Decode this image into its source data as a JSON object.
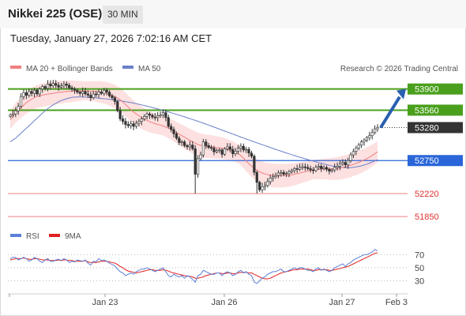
{
  "header": {
    "title": "Nikkei 225 (OSE)",
    "timeframe": "30 MIN",
    "timestamp": "Tuesday, January 27, 2026 7:02:16 AM CET"
  },
  "legend": {
    "bollinger": "MA 20 + Bollinger Bands",
    "ma50": "MA 50",
    "copyright": "Research © 2026 Trading Central",
    "rsi": "RSI",
    "rsi_ma": "9MA"
  },
  "colors": {
    "candle": "#333333",
    "ma20": "#f08080",
    "bands_fill": "#fde0e0",
    "ma50": "#6a7fc8",
    "resistance": "#4aa01c",
    "pivot": "#2a66d9",
    "support": "#f08080",
    "last": "#333333",
    "arrow": "#2a5fb0",
    "rsi": "#5b7fd6",
    "rsi_ma": "#e02020"
  },
  "chart_data": [
    {
      "type": "candlestick",
      "title": "Nikkei 225 (OSE)",
      "timeframe": "30 MIN",
      "x_ticks": [
        "Jan 23",
        "Jan 26",
        "Jan 27",
        "Feb 3"
      ],
      "ylim": [
        51750,
        54010
      ],
      "price_levels": [
        {
          "value": 53900,
          "label": "53900",
          "kind": "resistance"
        },
        {
          "value": 53560,
          "label": "53560",
          "kind": "resistance"
        },
        {
          "value": 53280,
          "label": "53280",
          "kind": "last"
        },
        {
          "value": 52750,
          "label": "52750",
          "kind": "pivot"
        },
        {
          "value": 52220,
          "label": "52220",
          "kind": "support"
        },
        {
          "value": 51850,
          "label": "51850",
          "kind": "support"
        }
      ],
      "close": [
        53480,
        53500,
        53550,
        53620,
        53780,
        53840,
        53800,
        53860,
        53830,
        53880,
        53820,
        53900,
        53940,
        53910,
        53980,
        53950,
        53990,
        53960,
        53930,
        53950,
        53980,
        53960,
        53920,
        53900,
        53880,
        53850,
        53830,
        53860,
        53820,
        53800,
        53760,
        53820,
        53810,
        53850,
        53830,
        53880,
        53850,
        53790,
        53760,
        53700,
        53550,
        53420,
        53380,
        53330,
        53310,
        53340,
        53300,
        53350,
        53380,
        53420,
        53460,
        53500,
        53480,
        53450,
        53440,
        53470,
        53480,
        53520,
        53440,
        53300,
        53250,
        53180,
        53110,
        53040,
        53050,
        52990,
        52970,
        53000,
        52940,
        52530,
        52780,
        52840,
        53050,
        52990,
        52960,
        52950,
        52890,
        52910,
        52920,
        52850,
        52940,
        52970,
        52930,
        52860,
        52900,
        52950,
        52980,
        52920,
        52930,
        52870,
        52820,
        52560,
        52400,
        52280,
        52330,
        52350,
        52410,
        52470,
        52490,
        52510,
        52550,
        52560,
        52530,
        52540,
        52570,
        52590,
        52620,
        52610,
        52640,
        52650,
        52640,
        52620,
        52600,
        52590,
        52640,
        52660,
        52620,
        52640,
        52610,
        52580,
        52600,
        52640,
        52660,
        52700,
        52720,
        52680,
        52750,
        52840,
        52900,
        52950,
        53000,
        53050,
        53080,
        53120,
        53150,
        53200,
        53260,
        53280
      ],
      "ma20": [
        53400,
        53460,
        53520,
        53560,
        53600,
        53640,
        53680,
        53710,
        53740,
        53760,
        53780,
        53790,
        53800,
        53810,
        53820,
        53825,
        53830,
        53840,
        53845,
        53850,
        53855,
        53860,
        53862,
        53864,
        53866,
        53868,
        53869,
        53870,
        53870,
        53868,
        53866,
        53864,
        53860,
        53855,
        53850,
        53840,
        53830,
        53815,
        53800,
        53780,
        53755,
        53725,
        53690,
        53650,
        53610,
        53570,
        53530,
        53500,
        53470,
        53440,
        53415,
        53395,
        53375,
        53360,
        53345,
        53330,
        53320,
        53305,
        53290,
        53270,
        53250,
        53225,
        53200,
        53175,
        53150,
        53125,
        53100,
        53075,
        53050,
        53030,
        53010,
        52995,
        52985,
        52980,
        52975,
        52970,
        52965,
        52960,
        52955,
        52950,
        52940,
        52930,
        52915,
        52900,
        52880,
        52860,
        52830,
        52790,
        52740,
        52700,
        52660,
        52625,
        52595,
        52570,
        52550,
        52535,
        52525,
        52515,
        52510,
        52508,
        52505,
        52505,
        52508,
        52510,
        52515,
        52520,
        52530,
        52540,
        52550,
        52560,
        52570,
        52580,
        52590,
        52598,
        52605,
        52610,
        52612,
        52614,
        52615,
        52615,
        52616,
        52620,
        52625,
        52630,
        52640,
        52650,
        52660,
        52675,
        52690,
        52705,
        52720,
        52740,
        52760,
        52780,
        52805,
        52830,
        52860,
        52890
      ],
      "ma50": [
        53050,
        53080,
        53110,
        53150,
        53190,
        53230,
        53270,
        53310,
        53350,
        53390,
        53430,
        53470,
        53510,
        53550,
        53585,
        53615,
        53645,
        53670,
        53695,
        53715,
        53730,
        53745,
        53755,
        53765,
        53770,
        53772,
        53773,
        53772,
        53770,
        53767,
        53764,
        53760,
        53756,
        53752,
        53748,
        53744,
        53740,
        53736,
        53731,
        53725,
        53719,
        53712,
        53705,
        53697,
        53689,
        53681,
        53673,
        53664,
        53654,
        53644,
        53634,
        53624,
        53613,
        53602,
        53591,
        53580,
        53568,
        53556,
        53544,
        53532,
        53519,
        53506,
        53493,
        53480,
        53466,
        53452,
        53438,
        53424,
        53410,
        53396,
        53381,
        53366,
        53351,
        53336,
        53320,
        53304,
        53288,
        53272,
        53256,
        53240,
        53224,
        53208,
        53192,
        53176,
        53160,
        53144,
        53128,
        53112,
        53096,
        53080,
        53065,
        53050,
        53035,
        53020,
        53005,
        52990,
        52975,
        52960,
        52945,
        52930,
        52915,
        52900,
        52886,
        52872,
        52858,
        52844,
        52830,
        52817,
        52804,
        52791,
        52778,
        52766,
        52754,
        52742,
        52730,
        52718,
        52707,
        52696,
        52685,
        52674,
        52664,
        52655,
        52648,
        52642,
        52638,
        52636,
        52636,
        52638,
        52642,
        52648,
        52656,
        52666,
        52678,
        52692,
        52708,
        52725,
        52744,
        52764
      ]
    },
    {
      "type": "line",
      "title": "RSI",
      "y_ticks": [
        70,
        50,
        30
      ],
      "ylim": [
        10,
        85
      ],
      "series": [
        {
          "name": "RSI",
          "values": [
            64,
            66,
            66,
            62,
            64,
            66,
            64,
            60,
            62,
            66,
            64,
            60,
            58,
            62,
            64,
            60,
            60,
            62,
            63,
            61,
            64,
            62,
            58,
            60,
            59,
            62,
            61,
            60,
            62,
            57,
            54,
            60,
            59,
            64,
            61,
            62,
            60,
            57,
            55,
            53,
            48,
            44,
            42,
            38,
            40,
            42,
            40,
            44,
            46,
            48,
            48,
            50,
            48,
            46,
            44,
            46,
            48,
            50,
            44,
            38,
            36,
            40,
            38,
            36,
            38,
            34,
            38,
            36,
            32,
            28,
            38,
            40,
            46,
            44,
            42,
            40,
            40,
            42,
            42,
            38,
            42,
            44,
            42,
            38,
            40,
            44,
            46,
            42,
            44,
            40,
            38,
            28,
            26,
            30,
            34,
            36,
            40,
            42,
            44,
            44,
            46,
            48,
            44,
            44,
            46,
            48,
            50,
            48,
            50,
            50,
            48,
            46,
            46,
            44,
            48,
            50,
            46,
            48,
            46,
            44,
            46,
            50,
            52,
            54,
            56,
            52,
            56,
            58,
            62,
            64,
            66,
            68,
            70,
            70,
            72,
            74,
            78,
            76
          ]
        },
        {
          "name": "9MA",
          "values": [
            62,
            63,
            64,
            64,
            64,
            65,
            64,
            63,
            63,
            64,
            64,
            63,
            62,
            62,
            62,
            61,
            61,
            61,
            62,
            61,
            62,
            62,
            61,
            61,
            60,
            60,
            60,
            60,
            61,
            59,
            58,
            58,
            58,
            59,
            60,
            60,
            60,
            59,
            58,
            57,
            55,
            52,
            50,
            47,
            45,
            44,
            43,
            42,
            43,
            44,
            45,
            46,
            47,
            47,
            46,
            46,
            46,
            47,
            46,
            45,
            43,
            42,
            41,
            40,
            39,
            38,
            37,
            37,
            36,
            34,
            34,
            35,
            36,
            38,
            39,
            40,
            41,
            42,
            42,
            41,
            41,
            42,
            42,
            41,
            41,
            42,
            43,
            43,
            43,
            42,
            42,
            40,
            38,
            36,
            34,
            33,
            33,
            34,
            36,
            38,
            40,
            42,
            43,
            44,
            45,
            46,
            47,
            47,
            48,
            48,
            48,
            48,
            47,
            46,
            46,
            47,
            47,
            47,
            47,
            46,
            46,
            47,
            48,
            49,
            50,
            51,
            52,
            54,
            56,
            58,
            60,
            62,
            64,
            66,
            68,
            70,
            72,
            73
          ]
        }
      ]
    }
  ]
}
